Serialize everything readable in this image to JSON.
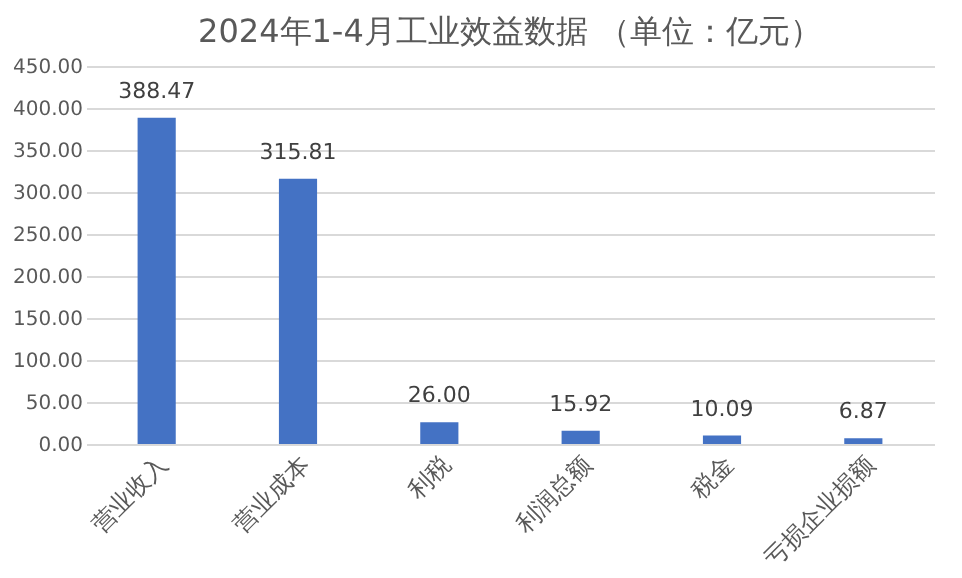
{
  "chart_data": {
    "type": "bar",
    "title": "2024年1-4月工业效益数据 （单位：亿元）",
    "categories": [
      "营业收入",
      "营业成本",
      "利税",
      "利润总额",
      "税金",
      "亏损企业损额"
    ],
    "values": [
      388.47,
      315.81,
      26,
      15.92,
      10.09,
      6.87
    ],
    "value_labels": [
      "388.47",
      "315.81",
      "26.00",
      "15.92",
      "10.09",
      "6.87"
    ],
    "color": "#4472c4",
    "ylim": [
      0,
      450
    ],
    "yticks": [
      {
        "value": 0,
        "label": "0.00"
      },
      {
        "value": 50,
        "label": "50.00"
      },
      {
        "value": 100,
        "label": "100.00"
      },
      {
        "value": 150,
        "label": "150.00"
      },
      {
        "value": 200,
        "label": "200.00"
      },
      {
        "value": 250,
        "label": "250.00"
      },
      {
        "value": 300,
        "label": "300.00"
      },
      {
        "value": 350,
        "label": "350.00"
      },
      {
        "value": 400,
        "label": "400.00"
      },
      {
        "value": 450,
        "label": "450.00"
      }
    ],
    "grid": "y"
  }
}
